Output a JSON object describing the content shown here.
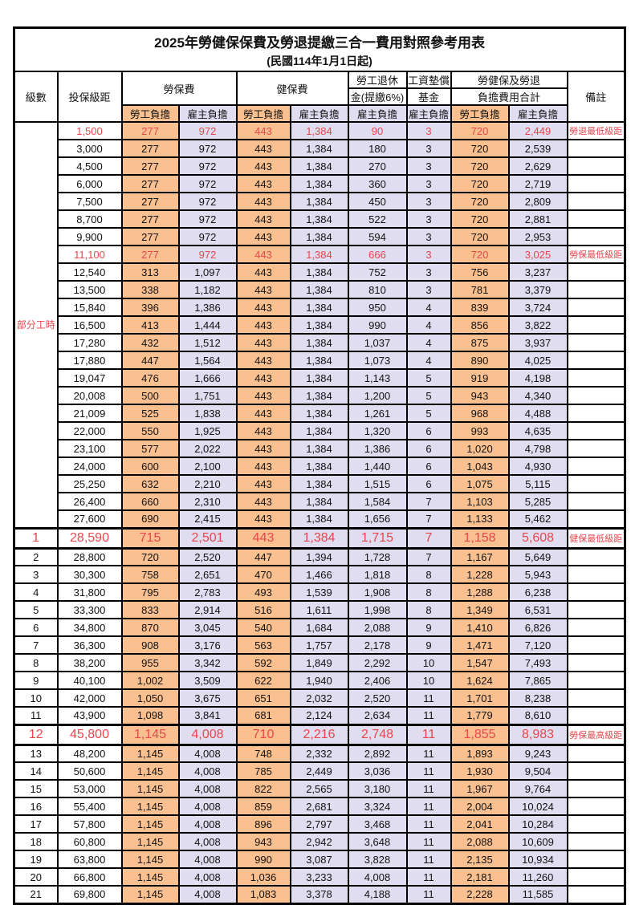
{
  "title": "2025年勞健保保費及勞退提繳三合一費用對照參考用表",
  "subtitle": "(民國114年1月1日起)",
  "colors": {
    "employee_bg": "#FAC08F",
    "employer_bg": "#E0DDF1",
    "red_text": "#E8464D",
    "border": "#000000"
  },
  "header": {
    "level": "級數",
    "bracket": "投保級距",
    "labor_ins": "勞保費",
    "health_ins": "健保費",
    "pension_line1": "勞工退休",
    "pension_line2": "金(提繳6%)",
    "wage_fund_line1": "工資墊償",
    "wage_fund_line2": "基金",
    "total_line1": "勞健保及勞退",
    "total_line2": "負擔費用合計",
    "remark": "備註",
    "employee": "勞工負擔",
    "employer": "雇主負擔"
  },
  "part_time_label": "部分工時",
  "part_time_rowspan": 23,
  "rows": [
    {
      "level": "",
      "bracket": "1,500",
      "li_emp": "277",
      "li_er": "972",
      "hi_emp": "443",
      "hi_er": "1,384",
      "pension": "90",
      "fund": "3",
      "tot_emp": "720",
      "tot_er": "2,449",
      "remark": "勞退最低級距",
      "red": true,
      "big": false
    },
    {
      "level": "",
      "bracket": "3,000",
      "li_emp": "277",
      "li_er": "972",
      "hi_emp": "443",
      "hi_er": "1,384",
      "pension": "180",
      "fund": "3",
      "tot_emp": "720",
      "tot_er": "2,539",
      "remark": "",
      "red": false,
      "big": false
    },
    {
      "level": "",
      "bracket": "4,500",
      "li_emp": "277",
      "li_er": "972",
      "hi_emp": "443",
      "hi_er": "1,384",
      "pension": "270",
      "fund": "3",
      "tot_emp": "720",
      "tot_er": "2,629",
      "remark": "",
      "red": false,
      "big": false
    },
    {
      "level": "",
      "bracket": "6,000",
      "li_emp": "277",
      "li_er": "972",
      "hi_emp": "443",
      "hi_er": "1,384",
      "pension": "360",
      "fund": "3",
      "tot_emp": "720",
      "tot_er": "2,719",
      "remark": "",
      "red": false,
      "big": false
    },
    {
      "level": "",
      "bracket": "7,500",
      "li_emp": "277",
      "li_er": "972",
      "hi_emp": "443",
      "hi_er": "1,384",
      "pension": "450",
      "fund": "3",
      "tot_emp": "720",
      "tot_er": "2,809",
      "remark": "",
      "red": false,
      "big": false
    },
    {
      "level": "",
      "bracket": "8,700",
      "li_emp": "277",
      "li_er": "972",
      "hi_emp": "443",
      "hi_er": "1,384",
      "pension": "522",
      "fund": "3",
      "tot_emp": "720",
      "tot_er": "2,881",
      "remark": "",
      "red": false,
      "big": false
    },
    {
      "level": "",
      "bracket": "9,900",
      "li_emp": "277",
      "li_er": "972",
      "hi_emp": "443",
      "hi_er": "1,384",
      "pension": "594",
      "fund": "3",
      "tot_emp": "720",
      "tot_er": "2,953",
      "remark": "",
      "red": false,
      "big": false
    },
    {
      "level": "",
      "bracket": "11,100",
      "li_emp": "277",
      "li_er": "972",
      "hi_emp": "443",
      "hi_er": "1,384",
      "pension": "666",
      "fund": "3",
      "tot_emp": "720",
      "tot_er": "3,025",
      "remark": "勞保最低級距",
      "red": true,
      "big": false
    },
    {
      "level": "",
      "bracket": "12,540",
      "li_emp": "313",
      "li_er": "1,097",
      "hi_emp": "443",
      "hi_er": "1,384",
      "pension": "752",
      "fund": "3",
      "tot_emp": "756",
      "tot_er": "3,237",
      "remark": "",
      "red": false,
      "big": false
    },
    {
      "level": "",
      "bracket": "13,500",
      "li_emp": "338",
      "li_er": "1,182",
      "hi_emp": "443",
      "hi_er": "1,384",
      "pension": "810",
      "fund": "3",
      "tot_emp": "781",
      "tot_er": "3,379",
      "remark": "",
      "red": false,
      "big": false
    },
    {
      "level": "",
      "bracket": "15,840",
      "li_emp": "396",
      "li_er": "1,386",
      "hi_emp": "443",
      "hi_er": "1,384",
      "pension": "950",
      "fund": "4",
      "tot_emp": "839",
      "tot_er": "3,724",
      "remark": "",
      "red": false,
      "big": false
    },
    {
      "level": "",
      "bracket": "16,500",
      "li_emp": "413",
      "li_er": "1,444",
      "hi_emp": "443",
      "hi_er": "1,384",
      "pension": "990",
      "fund": "4",
      "tot_emp": "856",
      "tot_er": "3,822",
      "remark": "",
      "red": false,
      "big": false
    },
    {
      "level": "",
      "bracket": "17,280",
      "li_emp": "432",
      "li_er": "1,512",
      "hi_emp": "443",
      "hi_er": "1,384",
      "pension": "1,037",
      "fund": "4",
      "tot_emp": "875",
      "tot_er": "3,937",
      "remark": "",
      "red": false,
      "big": false
    },
    {
      "level": "",
      "bracket": "17,880",
      "li_emp": "447",
      "li_er": "1,564",
      "hi_emp": "443",
      "hi_er": "1,384",
      "pension": "1,073",
      "fund": "4",
      "tot_emp": "890",
      "tot_er": "4,025",
      "remark": "",
      "red": false,
      "big": false
    },
    {
      "level": "",
      "bracket": "19,047",
      "li_emp": "476",
      "li_er": "1,666",
      "hi_emp": "443",
      "hi_er": "1,384",
      "pension": "1,143",
      "fund": "5",
      "tot_emp": "919",
      "tot_er": "4,198",
      "remark": "",
      "red": false,
      "big": false
    },
    {
      "level": "",
      "bracket": "20,008",
      "li_emp": "500",
      "li_er": "1,751",
      "hi_emp": "443",
      "hi_er": "1,384",
      "pension": "1,200",
      "fund": "5",
      "tot_emp": "943",
      "tot_er": "4,340",
      "remark": "",
      "red": false,
      "big": false
    },
    {
      "level": "",
      "bracket": "21,009",
      "li_emp": "525",
      "li_er": "1,838",
      "hi_emp": "443",
      "hi_er": "1,384",
      "pension": "1,261",
      "fund": "5",
      "tot_emp": "968",
      "tot_er": "4,488",
      "remark": "",
      "red": false,
      "big": false
    },
    {
      "level": "",
      "bracket": "22,000",
      "li_emp": "550",
      "li_er": "1,925",
      "hi_emp": "443",
      "hi_er": "1,384",
      "pension": "1,320",
      "fund": "6",
      "tot_emp": "993",
      "tot_er": "4,635",
      "remark": "",
      "red": false,
      "big": false
    },
    {
      "level": "",
      "bracket": "23,100",
      "li_emp": "577",
      "li_er": "2,022",
      "hi_emp": "443",
      "hi_er": "1,384",
      "pension": "1,386",
      "fund": "6",
      "tot_emp": "1,020",
      "tot_er": "4,798",
      "remark": "",
      "red": false,
      "big": false
    },
    {
      "level": "",
      "bracket": "24,000",
      "li_emp": "600",
      "li_er": "2,100",
      "hi_emp": "443",
      "hi_er": "1,384",
      "pension": "1,440",
      "fund": "6",
      "tot_emp": "1,043",
      "tot_er": "4,930",
      "remark": "",
      "red": false,
      "big": false
    },
    {
      "level": "",
      "bracket": "25,250",
      "li_emp": "632",
      "li_er": "2,210",
      "hi_emp": "443",
      "hi_er": "1,384",
      "pension": "1,515",
      "fund": "6",
      "tot_emp": "1,075",
      "tot_er": "5,115",
      "remark": "",
      "red": false,
      "big": false
    },
    {
      "level": "",
      "bracket": "26,400",
      "li_emp": "660",
      "li_er": "2,310",
      "hi_emp": "443",
      "hi_er": "1,384",
      "pension": "1,584",
      "fund": "7",
      "tot_emp": "1,103",
      "tot_er": "5,285",
      "remark": "",
      "red": false,
      "big": false
    },
    {
      "level": "",
      "bracket": "27,600",
      "li_emp": "690",
      "li_er": "2,415",
      "hi_emp": "443",
      "hi_er": "1,384",
      "pension": "1,656",
      "fund": "7",
      "tot_emp": "1,133",
      "tot_er": "5,462",
      "remark": "",
      "red": false,
      "big": false
    },
    {
      "level": "1",
      "bracket": "28,590",
      "li_emp": "715",
      "li_er": "2,501",
      "hi_emp": "443",
      "hi_er": "1,384",
      "pension": "1,715",
      "fund": "7",
      "tot_emp": "1,158",
      "tot_er": "5,608",
      "remark": "健保最低級距",
      "red": true,
      "big": true
    },
    {
      "level": "2",
      "bracket": "28,800",
      "li_emp": "720",
      "li_er": "2,520",
      "hi_emp": "447",
      "hi_er": "1,394",
      "pension": "1,728",
      "fund": "7",
      "tot_emp": "1,167",
      "tot_er": "5,649",
      "remark": "",
      "red": false,
      "big": false
    },
    {
      "level": "3",
      "bracket": "30,300",
      "li_emp": "758",
      "li_er": "2,651",
      "hi_emp": "470",
      "hi_er": "1,466",
      "pension": "1,818",
      "fund": "8",
      "tot_emp": "1,228",
      "tot_er": "5,943",
      "remark": "",
      "red": false,
      "big": false
    },
    {
      "level": "4",
      "bracket": "31,800",
      "li_emp": "795",
      "li_er": "2,783",
      "hi_emp": "493",
      "hi_er": "1,539",
      "pension": "1,908",
      "fund": "8",
      "tot_emp": "1,288",
      "tot_er": "6,238",
      "remark": "",
      "red": false,
      "big": false
    },
    {
      "level": "5",
      "bracket": "33,300",
      "li_emp": "833",
      "li_er": "2,914",
      "hi_emp": "516",
      "hi_er": "1,611",
      "pension": "1,998",
      "fund": "8",
      "tot_emp": "1,349",
      "tot_er": "6,531",
      "remark": "",
      "red": false,
      "big": false
    },
    {
      "level": "6",
      "bracket": "34,800",
      "li_emp": "870",
      "li_er": "3,045",
      "hi_emp": "540",
      "hi_er": "1,684",
      "pension": "2,088",
      "fund": "9",
      "tot_emp": "1,410",
      "tot_er": "6,826",
      "remark": "",
      "red": false,
      "big": false
    },
    {
      "level": "7",
      "bracket": "36,300",
      "li_emp": "908",
      "li_er": "3,176",
      "hi_emp": "563",
      "hi_er": "1,757",
      "pension": "2,178",
      "fund": "9",
      "tot_emp": "1,471",
      "tot_er": "7,120",
      "remark": "",
      "red": false,
      "big": false
    },
    {
      "level": "8",
      "bracket": "38,200",
      "li_emp": "955",
      "li_er": "3,342",
      "hi_emp": "592",
      "hi_er": "1,849",
      "pension": "2,292",
      "fund": "10",
      "tot_emp": "1,547",
      "tot_er": "7,493",
      "remark": "",
      "red": false,
      "big": false
    },
    {
      "level": "9",
      "bracket": "40,100",
      "li_emp": "1,002",
      "li_er": "3,509",
      "hi_emp": "622",
      "hi_er": "1,940",
      "pension": "2,406",
      "fund": "10",
      "tot_emp": "1,624",
      "tot_er": "7,865",
      "remark": "",
      "red": false,
      "big": false
    },
    {
      "level": "10",
      "bracket": "42,000",
      "li_emp": "1,050",
      "li_er": "3,675",
      "hi_emp": "651",
      "hi_er": "2,032",
      "pension": "2,520",
      "fund": "11",
      "tot_emp": "1,701",
      "tot_er": "8,238",
      "remark": "",
      "red": false,
      "big": false
    },
    {
      "level": "11",
      "bracket": "43,900",
      "li_emp": "1,098",
      "li_er": "3,841",
      "hi_emp": "681",
      "hi_er": "2,124",
      "pension": "2,634",
      "fund": "11",
      "tot_emp": "1,779",
      "tot_er": "8,610",
      "remark": "",
      "red": false,
      "big": false
    },
    {
      "level": "12",
      "bracket": "45,800",
      "li_emp": "1,145",
      "li_er": "4,008",
      "hi_emp": "710",
      "hi_er": "2,216",
      "pension": "2,748",
      "fund": "11",
      "tot_emp": "1,855",
      "tot_er": "8,983",
      "remark": "勞保最高級距",
      "red": true,
      "big": true
    },
    {
      "level": "13",
      "bracket": "48,200",
      "li_emp": "1,145",
      "li_er": "4,008",
      "hi_emp": "748",
      "hi_er": "2,332",
      "pension": "2,892",
      "fund": "11",
      "tot_emp": "1,893",
      "tot_er": "9,243",
      "remark": "",
      "red": false,
      "big": false
    },
    {
      "level": "14",
      "bracket": "50,600",
      "li_emp": "1,145",
      "li_er": "4,008",
      "hi_emp": "785",
      "hi_er": "2,449",
      "pension": "3,036",
      "fund": "11",
      "tot_emp": "1,930",
      "tot_er": "9,504",
      "remark": "",
      "red": false,
      "big": false
    },
    {
      "level": "15",
      "bracket": "53,000",
      "li_emp": "1,145",
      "li_er": "4,008",
      "hi_emp": "822",
      "hi_er": "2,565",
      "pension": "3,180",
      "fund": "11",
      "tot_emp": "1,967",
      "tot_er": "9,764",
      "remark": "",
      "red": false,
      "big": false
    },
    {
      "level": "16",
      "bracket": "55,400",
      "li_emp": "1,145",
      "li_er": "4,008",
      "hi_emp": "859",
      "hi_er": "2,681",
      "pension": "3,324",
      "fund": "11",
      "tot_emp": "2,004",
      "tot_er": "10,024",
      "remark": "",
      "red": false,
      "big": false
    },
    {
      "level": "17",
      "bracket": "57,800",
      "li_emp": "1,145",
      "li_er": "4,008",
      "hi_emp": "896",
      "hi_er": "2,797",
      "pension": "3,468",
      "fund": "11",
      "tot_emp": "2,041",
      "tot_er": "10,284",
      "remark": "",
      "red": false,
      "big": false
    },
    {
      "level": "18",
      "bracket": "60,800",
      "li_emp": "1,145",
      "li_er": "4,008",
      "hi_emp": "943",
      "hi_er": "2,942",
      "pension": "3,648",
      "fund": "11",
      "tot_emp": "2,088",
      "tot_er": "10,609",
      "remark": "",
      "red": false,
      "big": false
    },
    {
      "level": "19",
      "bracket": "63,800",
      "li_emp": "1,145",
      "li_er": "4,008",
      "hi_emp": "990",
      "hi_er": "3,087",
      "pension": "3,828",
      "fund": "11",
      "tot_emp": "2,135",
      "tot_er": "10,934",
      "remark": "",
      "red": false,
      "big": false
    },
    {
      "level": "20",
      "bracket": "66,800",
      "li_emp": "1,145",
      "li_er": "4,008",
      "hi_emp": "1,036",
      "hi_er": "3,233",
      "pension": "4,008",
      "fund": "11",
      "tot_emp": "2,181",
      "tot_er": "11,260",
      "remark": "",
      "red": false,
      "big": false
    },
    {
      "level": "21",
      "bracket": "69,800",
      "li_emp": "1,145",
      "li_er": "4,008",
      "hi_emp": "1,083",
      "hi_er": "3,378",
      "pension": "4,188",
      "fund": "11",
      "tot_emp": "2,228",
      "tot_er": "11,585",
      "remark": "",
      "red": false,
      "big": false
    }
  ]
}
